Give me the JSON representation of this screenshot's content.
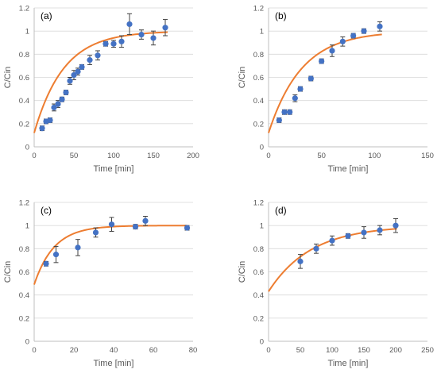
{
  "colors": {
    "marker": "#4472C4",
    "fit": "#ED7D31",
    "error_bar": "#404040",
    "gridline": "#D9D9D9",
    "axis_line": "#BFBFBF"
  },
  "chart_data": [
    {
      "type": "scatter",
      "panel_label": "(a)",
      "xlabel": "Time [min]",
      "ylabel": "C/Cin",
      "xlim": [
        0,
        200
      ],
      "ylim": [
        0,
        1.2
      ],
      "xticks": [
        0,
        50,
        100,
        150,
        200
      ],
      "yticks": [
        0,
        0.2,
        0.4,
        0.6,
        0.8,
        1,
        1.2
      ],
      "xtick_labels": [
        "0",
        "50",
        "100",
        "150",
        "200"
      ],
      "ytick_labels": [
        "0",
        "0.2",
        "0.4",
        "0.6",
        "0.8",
        "1",
        "1.2"
      ],
      "grid": "horizontal",
      "points": [
        {
          "x": 10,
          "y": 0.16,
          "err": 0.02
        },
        {
          "x": 15,
          "y": 0.22,
          "err": 0.02
        },
        {
          "x": 20,
          "y": 0.23,
          "err": 0.02
        },
        {
          "x": 25,
          "y": 0.34,
          "err": 0.03
        },
        {
          "x": 30,
          "y": 0.37,
          "err": 0.03
        },
        {
          "x": 35,
          "y": 0.41,
          "err": 0.02
        },
        {
          "x": 40,
          "y": 0.47,
          "err": 0.02
        },
        {
          "x": 45,
          "y": 0.57,
          "err": 0.03
        },
        {
          "x": 50,
          "y": 0.62,
          "err": 0.04
        },
        {
          "x": 55,
          "y": 0.65,
          "err": 0.03
        },
        {
          "x": 60,
          "y": 0.69,
          "err": 0.02
        },
        {
          "x": 70,
          "y": 0.75,
          "err": 0.04
        },
        {
          "x": 80,
          "y": 0.79,
          "err": 0.04
        },
        {
          "x": 90,
          "y": 0.89,
          "err": 0.02
        },
        {
          "x": 100,
          "y": 0.89,
          "err": 0.03
        },
        {
          "x": 110,
          "y": 0.91,
          "err": 0.05
        },
        {
          "x": 120,
          "y": 1.06,
          "err": 0.09
        },
        {
          "x": 135,
          "y": 0.97,
          "err": 0.04
        },
        {
          "x": 150,
          "y": 0.94,
          "err": 0.06
        },
        {
          "x": 165,
          "y": 1.03,
          "err": 0.07
        }
      ],
      "fit": {
        "x0": 0,
        "y0": 0.12,
        "k": 0.027,
        "x_end": 168
      }
    },
    {
      "type": "scatter",
      "panel_label": "(b)",
      "xlabel": "Time [min]",
      "ylabel": "C/Cin",
      "xlim": [
        0,
        150
      ],
      "ylim": [
        0,
        1.2
      ],
      "xticks": [
        0,
        50,
        100,
        150
      ],
      "yticks": [
        0,
        0.2,
        0.4,
        0.6,
        0.8,
        1,
        1.2
      ],
      "xtick_labels": [
        "0",
        "50",
        "100",
        "150"
      ],
      "ytick_labels": [
        "0",
        "0.2",
        "0.4",
        "0.6",
        "0.8",
        "1",
        "1.2"
      ],
      "grid": "horizontal",
      "points": [
        {
          "x": 10,
          "y": 0.23,
          "err": 0.02
        },
        {
          "x": 15,
          "y": 0.3,
          "err": 0.02
        },
        {
          "x": 20,
          "y": 0.3,
          "err": 0.02
        },
        {
          "x": 25,
          "y": 0.42,
          "err": 0.03
        },
        {
          "x": 30,
          "y": 0.5,
          "err": 0.02
        },
        {
          "x": 40,
          "y": 0.59,
          "err": 0.02
        },
        {
          "x": 50,
          "y": 0.74,
          "err": 0.02
        },
        {
          "x": 60,
          "y": 0.83,
          "err": 0.05
        },
        {
          "x": 70,
          "y": 0.91,
          "err": 0.04
        },
        {
          "x": 80,
          "y": 0.96,
          "err": 0.02
        },
        {
          "x": 90,
          "y": 1.0,
          "err": 0.02
        },
        {
          "x": 105,
          "y": 1.04,
          "err": 0.04
        }
      ],
      "fit": {
        "x0": 0,
        "y0": 0.12,
        "k": 0.032,
        "x_end": 107
      }
    },
    {
      "type": "scatter",
      "panel_label": "(c)",
      "xlabel": "Time [min]",
      "ylabel": "C/Cin",
      "xlim": [
        0,
        80
      ],
      "ylim": [
        0,
        1.2
      ],
      "xticks": [
        0,
        20,
        40,
        60,
        80
      ],
      "yticks": [
        0,
        0.2,
        0.4,
        0.6,
        0.8,
        1,
        1.2
      ],
      "xtick_labels": [
        "0",
        "20",
        "40",
        "60",
        "80"
      ],
      "ytick_labels": [
        "0",
        "0.2",
        "0.4",
        "0.6",
        "0.8",
        "1",
        "1.2"
      ],
      "grid": "horizontal",
      "points": [
        {
          "x": 6,
          "y": 0.67,
          "err": 0.02
        },
        {
          "x": 11,
          "y": 0.75,
          "err": 0.07
        },
        {
          "x": 22,
          "y": 0.81,
          "err": 0.07
        },
        {
          "x": 31,
          "y": 0.94,
          "err": 0.04
        },
        {
          "x": 39,
          "y": 1.01,
          "err": 0.06
        },
        {
          "x": 51,
          "y": 0.99,
          "err": 0.02
        },
        {
          "x": 56,
          "y": 1.04,
          "err": 0.04
        },
        {
          "x": 77,
          "y": 0.98,
          "err": 0.02
        }
      ],
      "fit": {
        "x0": 0,
        "y0": 0.49,
        "k": 0.1,
        "x_end": 77
      }
    },
    {
      "type": "scatter",
      "panel_label": "(d)",
      "xlabel": "Time [min]",
      "ylabel": "C/Cin",
      "xlim": [
        0,
        250
      ],
      "ylim": [
        0,
        1.2
      ],
      "xticks": [
        0,
        50,
        100,
        150,
        200,
        250
      ],
      "yticks": [
        0,
        0.2,
        0.4,
        0.6,
        0.8,
        1,
        1.2
      ],
      "xtick_labels": [
        "0",
        "50",
        "100",
        "150",
        "200",
        "250"
      ],
      "ytick_labels": [
        "0",
        "0.2",
        "0.4",
        "0.6",
        "0.8",
        "1",
        "1.2"
      ],
      "grid": "horizontal",
      "points": [
        {
          "x": 50,
          "y": 0.69,
          "err": 0.06
        },
        {
          "x": 75,
          "y": 0.8,
          "err": 0.04
        },
        {
          "x": 100,
          "y": 0.87,
          "err": 0.04
        },
        {
          "x": 125,
          "y": 0.91,
          "err": 0.02
        },
        {
          "x": 150,
          "y": 0.94,
          "err": 0.05
        },
        {
          "x": 175,
          "y": 0.96,
          "err": 0.04
        },
        {
          "x": 200,
          "y": 1.0,
          "err": 0.06
        }
      ],
      "fit": {
        "x0": 0,
        "y0": 0.43,
        "k": 0.015,
        "x_end": 202
      }
    }
  ]
}
